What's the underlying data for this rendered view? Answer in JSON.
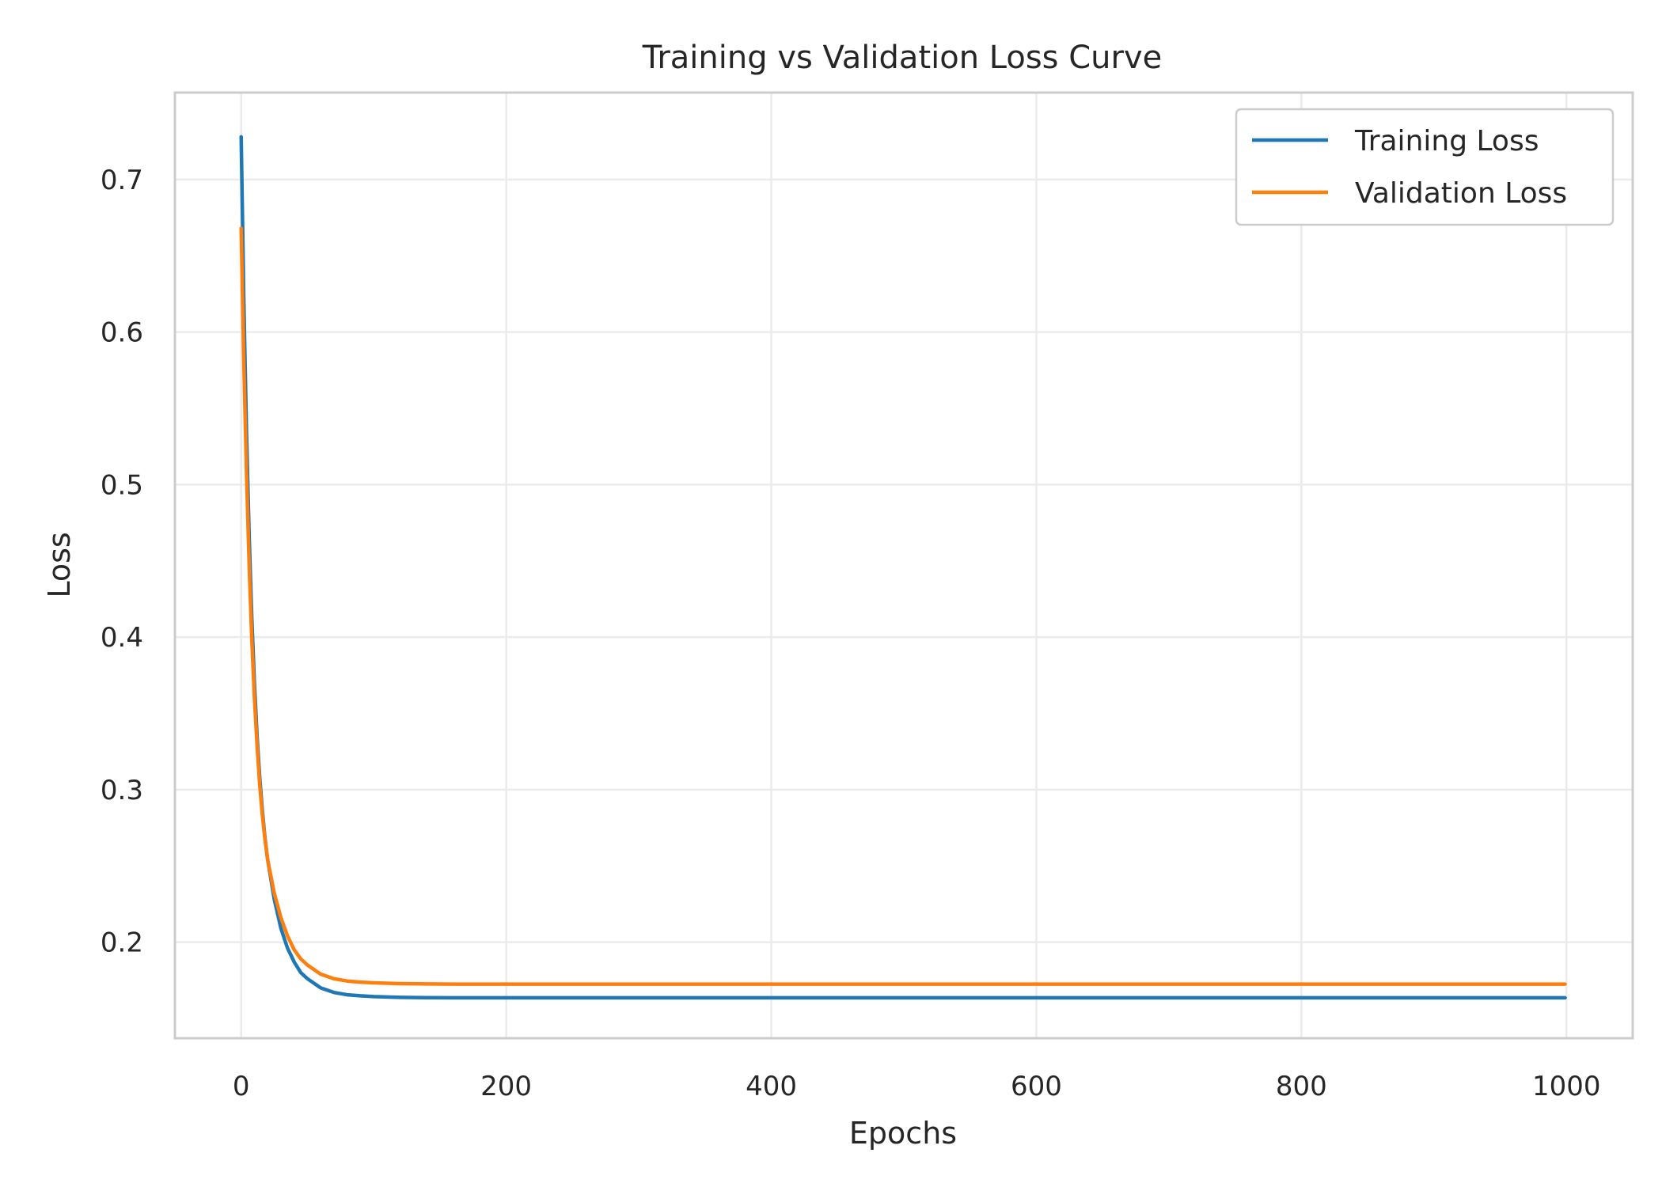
{
  "chart_data": {
    "type": "line",
    "title": "Training vs Validation Loss Curve",
    "xlabel": "Epochs",
    "ylabel": "Loss",
    "xlim": [
      -50,
      1050
    ],
    "ylim": [
      0.137,
      0.757
    ],
    "xticks": [
      0,
      200,
      400,
      600,
      800,
      1000
    ],
    "xtick_labels": [
      "0",
      "200",
      "400",
      "600",
      "800",
      "1000"
    ],
    "yticks": [
      0.2,
      0.3,
      0.4,
      0.5,
      0.6,
      0.7
    ],
    "ytick_labels": [
      "0.2",
      "0.3",
      "0.4",
      "0.5",
      "0.6",
      "0.7"
    ],
    "grid": true,
    "legend_position": "top-right",
    "series": [
      {
        "name": "Training Loss",
        "color": "#1f77b4",
        "x": [
          0,
          2,
          4,
          6,
          8,
          10,
          12,
          14,
          16,
          18,
          20,
          25,
          30,
          35,
          40,
          45,
          50,
          60,
          70,
          80,
          90,
          100,
          120,
          140,
          160,
          180,
          200,
          300,
          400,
          500,
          600,
          700,
          800,
          900,
          999
        ],
        "y": [
          0.728,
          0.62,
          0.535,
          0.467,
          0.413,
          0.37,
          0.335,
          0.308,
          0.286,
          0.268,
          0.254,
          0.228,
          0.209,
          0.196,
          0.187,
          0.18,
          0.176,
          0.17,
          0.167,
          0.1655,
          0.1648,
          0.1643,
          0.1638,
          0.1636,
          0.1635,
          0.1635,
          0.1635,
          0.1635,
          0.1635,
          0.1635,
          0.1635,
          0.1635,
          0.1635,
          0.1635,
          0.1635
        ]
      },
      {
        "name": "Validation Loss",
        "color": "#ff7f0e",
        "x": [
          0,
          2,
          4,
          6,
          8,
          10,
          12,
          14,
          16,
          18,
          20,
          25,
          30,
          35,
          40,
          45,
          50,
          60,
          70,
          80,
          90,
          100,
          120,
          140,
          160,
          180,
          200,
          300,
          400,
          500,
          600,
          700,
          800,
          900,
          999
        ],
        "y": [
          0.668,
          0.58,
          0.508,
          0.448,
          0.399,
          0.36,
          0.329,
          0.303,
          0.283,
          0.267,
          0.254,
          0.232,
          0.216,
          0.204,
          0.195,
          0.189,
          0.185,
          0.179,
          0.176,
          0.1745,
          0.1738,
          0.1733,
          0.1728,
          0.1726,
          0.1725,
          0.1725,
          0.1725,
          0.1725,
          0.1725,
          0.1725,
          0.1725,
          0.1725,
          0.1725,
          0.1725,
          0.1725
        ]
      }
    ]
  }
}
